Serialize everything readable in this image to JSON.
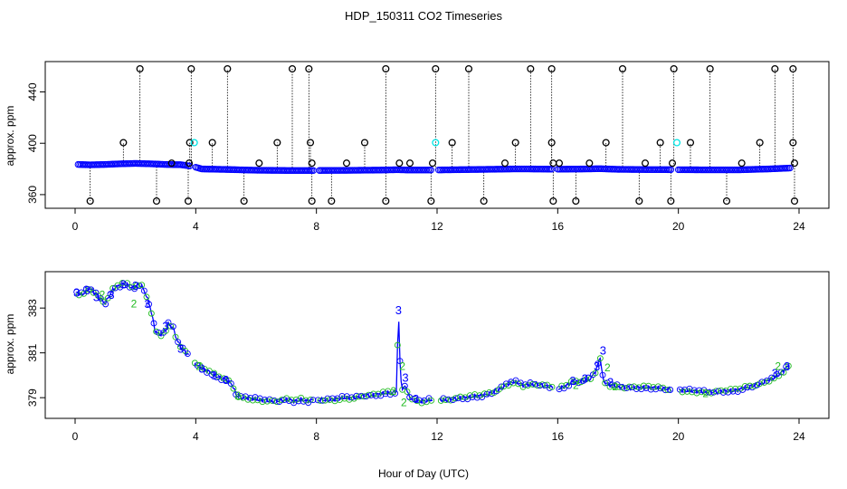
{
  "title": "HDP_150311  CO2 Timeseries",
  "xlabel": "Hour of Day (UTC)",
  "colors": {
    "frame": "#000000",
    "main": "#0000ff",
    "outlier": "#000000",
    "highlight": "#00e5e5",
    "alt": "#22bb22"
  },
  "chart_data": [
    {
      "type": "scatter",
      "name": "top-panel",
      "ylabel": "approx. ppm",
      "xlim": [
        0,
        24
      ],
      "ylim": [
        355,
        458
      ],
      "xticks": [
        0,
        4,
        8,
        12,
        16,
        20,
        24
      ],
      "yticks": [
        360,
        400,
        440
      ],
      "baseline": [
        [
          0.1,
          383.5
        ],
        [
          0.5,
          383.2
        ],
        [
          1.0,
          383.5
        ],
        [
          1.5,
          384
        ],
        [
          2.0,
          384.3
        ],
        [
          2.5,
          384
        ],
        [
          3.0,
          383.5
        ],
        [
          3.5,
          383.3
        ],
        [
          3.9,
          382
        ],
        [
          4.2,
          380
        ],
        [
          5.0,
          379.6
        ],
        [
          6.0,
          379
        ],
        [
          7.0,
          378.8
        ],
        [
          8.0,
          378.8
        ],
        [
          9.0,
          378.9
        ],
        [
          10.0,
          379.1
        ],
        [
          10.7,
          379.4
        ],
        [
          11.0,
          379.2
        ],
        [
          12.0,
          379.2
        ],
        [
          13.0,
          379.5
        ],
        [
          14.0,
          379.8
        ],
        [
          14.5,
          380
        ],
        [
          15.0,
          380
        ],
        [
          16.0,
          379.8
        ],
        [
          17.0,
          380
        ],
        [
          17.4,
          380.2
        ],
        [
          18.0,
          379.7
        ],
        [
          19.0,
          379.5
        ],
        [
          20.0,
          379.4
        ],
        [
          21.0,
          379.3
        ],
        [
          22.0,
          379.3
        ],
        [
          23.0,
          380
        ],
        [
          23.7,
          380.7
        ]
      ],
      "outliers_high": [
        2.15,
        3.85,
        5.05,
        7.2,
        7.75,
        10.3,
        11.95,
        13.05,
        15.1,
        15.8,
        18.15,
        19.85,
        21.05,
        23.2,
        23.8
      ],
      "outliers_low": [
        0.5,
        2.7,
        3.75,
        5.6,
        7.85,
        8.5,
        10.3,
        11.8,
        13.55,
        15.85,
        16.6,
        18.7,
        19.75,
        21.6,
        23.85
      ],
      "outliers_mid": [
        1.6,
        3.8,
        4.55,
        6.7,
        7.8,
        9.6,
        12.5,
        14.6,
        15.8,
        17.6,
        19.4,
        20.4,
        22.7,
        23.8
      ],
      "outliers_near": [
        3.2,
        3.78,
        6.1,
        7.85,
        9.0,
        10.75,
        11.1,
        11.85,
        14.25,
        15.85,
        16.05,
        17.05,
        18.9,
        19.8,
        22.1,
        23.85
      ],
      "highlight_points": [
        [
          3.95,
          400.5
        ],
        [
          11.95,
          400.5
        ],
        [
          19.95,
          400.5
        ]
      ],
      "gaps": [
        [
          3.8,
          3.95
        ],
        [
          7.9,
          8.05
        ],
        [
          11.85,
          12.05
        ],
        [
          15.85,
          16.0
        ],
        [
          19.8,
          20.0
        ]
      ]
    },
    {
      "type": "line",
      "name": "bottom-panel",
      "ylabel": "approx. ppm",
      "xlim": [
        0,
        24
      ],
      "ylim": [
        378.4,
        384.3
      ],
      "xticks": [
        0,
        4,
        8,
        12,
        16,
        20,
        24
      ],
      "yticks": [
        379,
        381,
        383
      ],
      "marker": "3",
      "series_x": [
        0.05,
        0.25,
        0.45,
        0.65,
        0.85,
        1.0,
        1.15,
        1.3,
        1.45,
        1.6,
        1.75,
        1.9,
        2.05,
        2.2,
        2.35,
        2.5,
        2.65,
        2.8,
        2.95,
        3.1,
        3.25,
        3.4,
        3.55,
        3.7,
        3.85,
        4.0,
        4.2,
        4.4,
        4.6,
        4.8,
        5.0,
        5.2,
        5.35,
        5.5,
        5.7,
        5.9,
        6.1,
        6.3,
        6.5,
        6.7,
        6.9,
        7.1,
        7.3,
        7.5,
        7.7,
        7.9,
        8.15,
        8.4,
        8.7,
        9.0,
        9.3,
        9.6,
        9.9,
        10.2,
        10.5,
        10.65,
        10.72,
        10.78,
        10.85,
        10.95,
        11.05,
        11.2,
        11.4,
        11.6,
        11.8,
        12.05,
        12.3,
        12.6,
        12.9,
        13.2,
        13.5,
        13.8,
        14.1,
        14.3,
        14.5,
        14.7,
        14.9,
        15.1,
        15.3,
        15.5,
        15.7,
        16.05,
        16.3,
        16.5,
        16.7,
        16.9,
        17.1,
        17.3,
        17.4,
        17.5,
        17.6,
        17.8,
        18.0,
        18.3,
        18.6,
        18.9,
        19.2,
        19.5,
        19.8,
        20.05,
        20.3,
        20.6,
        20.9,
        21.2,
        21.5,
        21.8,
        22.1,
        22.4,
        22.7,
        23.0,
        23.2,
        23.4,
        23.55,
        23.7
      ],
      "series_y": [
        383.7,
        383.6,
        383.9,
        383.7,
        383.4,
        383.2,
        383.6,
        383.9,
        384.0,
        384.1,
        384.0,
        383.9,
        384.0,
        384.0,
        383.6,
        383.0,
        382.0,
        381.8,
        381.9,
        382.3,
        382.1,
        381.5,
        381.2,
        381.0,
        380.7,
        380.5,
        380.3,
        380.2,
        380.0,
        379.9,
        379.8,
        379.6,
        379.1,
        379.0,
        379.0,
        378.95,
        378.9,
        378.9,
        378.85,
        378.85,
        378.9,
        378.9,
        378.85,
        378.9,
        378.85,
        378.9,
        378.9,
        378.9,
        378.95,
        379.0,
        379.0,
        379.1,
        379.1,
        379.2,
        379.2,
        379.3,
        382.8,
        380.2,
        379.3,
        379.6,
        379.1,
        378.9,
        378.85,
        378.85,
        378.9,
        378.9,
        378.9,
        378.95,
        379.0,
        379.05,
        379.1,
        379.2,
        379.4,
        379.6,
        379.7,
        379.65,
        379.55,
        379.6,
        379.6,
        379.55,
        379.5,
        379.4,
        379.55,
        379.7,
        379.7,
        379.8,
        379.85,
        380.3,
        380.9,
        379.8,
        379.65,
        379.55,
        379.5,
        379.45,
        379.45,
        379.45,
        379.45,
        379.4,
        379.35,
        379.35,
        379.3,
        379.3,
        379.25,
        379.25,
        379.3,
        379.3,
        379.4,
        379.5,
        379.6,
        379.8,
        379.9,
        380.1,
        380.3,
        380.5
      ],
      "labels_3": [
        [
          0.05,
          383.7
        ],
        [
          0.4,
          383.8
        ],
        [
          0.7,
          383.5
        ],
        [
          1.2,
          383.6
        ],
        [
          1.6,
          384.05
        ],
        [
          2.0,
          384.0
        ],
        [
          2.4,
          383.2
        ],
        [
          3.0,
          382.2
        ],
        [
          3.5,
          381.2
        ],
        [
          4.2,
          380.3
        ],
        [
          4.6,
          380.0
        ],
        [
          5.0,
          379.8
        ],
        [
          10.72,
          382.9
        ],
        [
          10.95,
          379.9
        ],
        [
          11.3,
          378.95
        ],
        [
          16.5,
          379.75
        ],
        [
          16.9,
          379.85
        ],
        [
          17.3,
          380.4
        ],
        [
          17.5,
          381.1
        ],
        [
          17.75,
          379.7
        ],
        [
          23.2,
          380.1
        ],
        [
          23.6,
          380.4
        ]
      ],
      "labels_2": [
        [
          0.9,
          383.6
        ],
        [
          1.95,
          383.2
        ],
        [
          4.1,
          380.4
        ],
        [
          5.4,
          379.1
        ],
        [
          10.55,
          379.3
        ],
        [
          10.85,
          380.4
        ],
        [
          10.9,
          378.8
        ],
        [
          16.6,
          379.55
        ],
        [
          17.65,
          380.35
        ],
        [
          17.9,
          379.5
        ],
        [
          20.9,
          379.2
        ],
        [
          23.3,
          380.4
        ]
      ],
      "gaps": [
        [
          3.8,
          3.95
        ],
        [
          7.9,
          8.05
        ],
        [
          11.85,
          12.05
        ],
        [
          15.85,
          16.0
        ],
        [
          19.8,
          20.0
        ]
      ]
    }
  ]
}
